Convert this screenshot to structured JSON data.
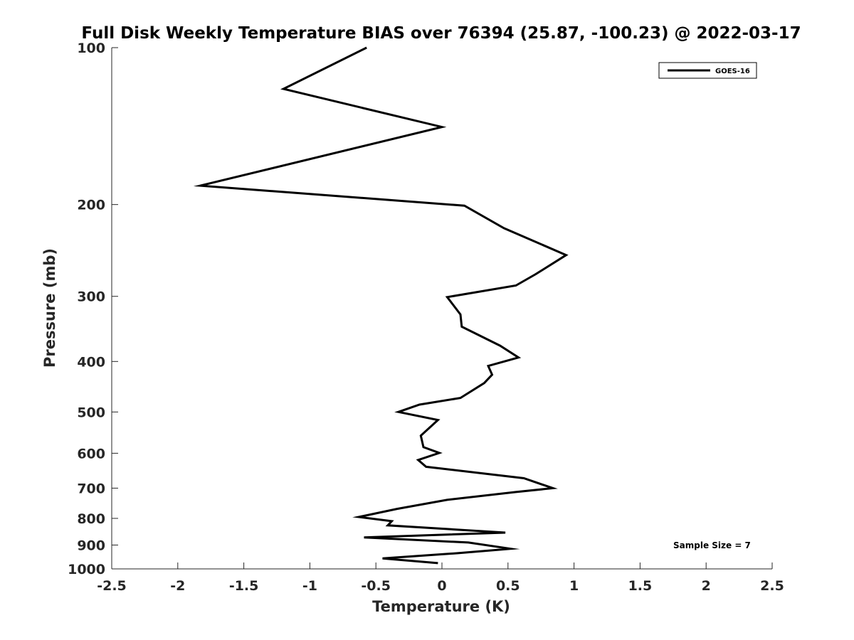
{
  "chart_data": {
    "type": "line",
    "title": "Full Disk Weekly Temperature BIAS over 76394 (25.87, -100.23) @ 2022-03-17",
    "xlabel": "Temperature (K)",
    "ylabel": "Pressure (mb)",
    "xlim": [
      -2.5,
      2.5
    ],
    "ylim": [
      100,
      1000
    ],
    "y_scale": "log",
    "y_reversed": true,
    "grid": false,
    "x_ticks": [
      -2.5,
      -2,
      -1.5,
      -1,
      -0.5,
      0,
      0.5,
      1,
      1.5,
      2,
      2.5
    ],
    "x_tick_labels": [
      "-2.5",
      "-2",
      "-1.5",
      "-1",
      "-0.5",
      "0",
      "0.5",
      "1",
      "1.5",
      "2",
      "2.5"
    ],
    "y_ticks": [
      100,
      200,
      300,
      400,
      500,
      600,
      700,
      800,
      900,
      1000
    ],
    "y_tick_labels": [
      "100",
      "200",
      "300",
      "400",
      "500",
      "600",
      "700",
      "800",
      "900",
      "1000"
    ],
    "legend": {
      "placement": "top-right",
      "entries": [
        "GOES-16"
      ]
    },
    "annotation": "Sample Size = 7",
    "series": [
      {
        "name": "GOES-16",
        "color": "#000000",
        "x": [
          -0.57,
          -1.2,
          0.0,
          -1.83,
          0.17,
          0.47,
          0.94,
          0.71,
          0.56,
          0.04,
          0.14,
          0.15,
          0.44,
          0.58,
          0.35,
          0.38,
          0.32,
          0.14,
          -0.17,
          -0.33,
          -0.03,
          -0.16,
          -0.14,
          -0.02,
          -0.18,
          -0.12,
          0.62,
          0.84,
          0.56,
          0.04,
          -0.34,
          -0.63,
          -0.38,
          -0.41,
          0.48,
          -0.59,
          0.2,
          0.52,
          0.12,
          -0.45,
          -0.03
        ],
        "y": [
          100,
          120,
          142,
          184,
          201,
          222,
          250,
          272,
          286,
          301,
          325,
          343,
          373,
          393,
          408,
          424,
          440,
          470,
          484,
          500,
          518,
          555,
          584,
          599,
          618,
          637,
          670,
          700,
          712,
          737,
          767,
          795,
          810,
          825,
          852,
          870,
          890,
          915,
          933,
          955,
          975
        ]
      }
    ]
  }
}
